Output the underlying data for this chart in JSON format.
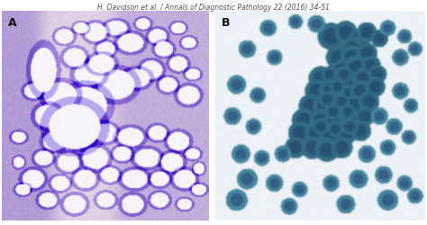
{
  "header_text": "H. Davidson et al. / Annals of Diagnostic Pathology 22 (2016) 34-51",
  "header_fontsize": 5.5,
  "header_color": "#555555",
  "label_A": "A",
  "label_B": "B",
  "label_fontsize": 9,
  "label_color": "#111111",
  "bg_color": "#ffffff",
  "fig_width": 4.74,
  "fig_height": 2.5
}
